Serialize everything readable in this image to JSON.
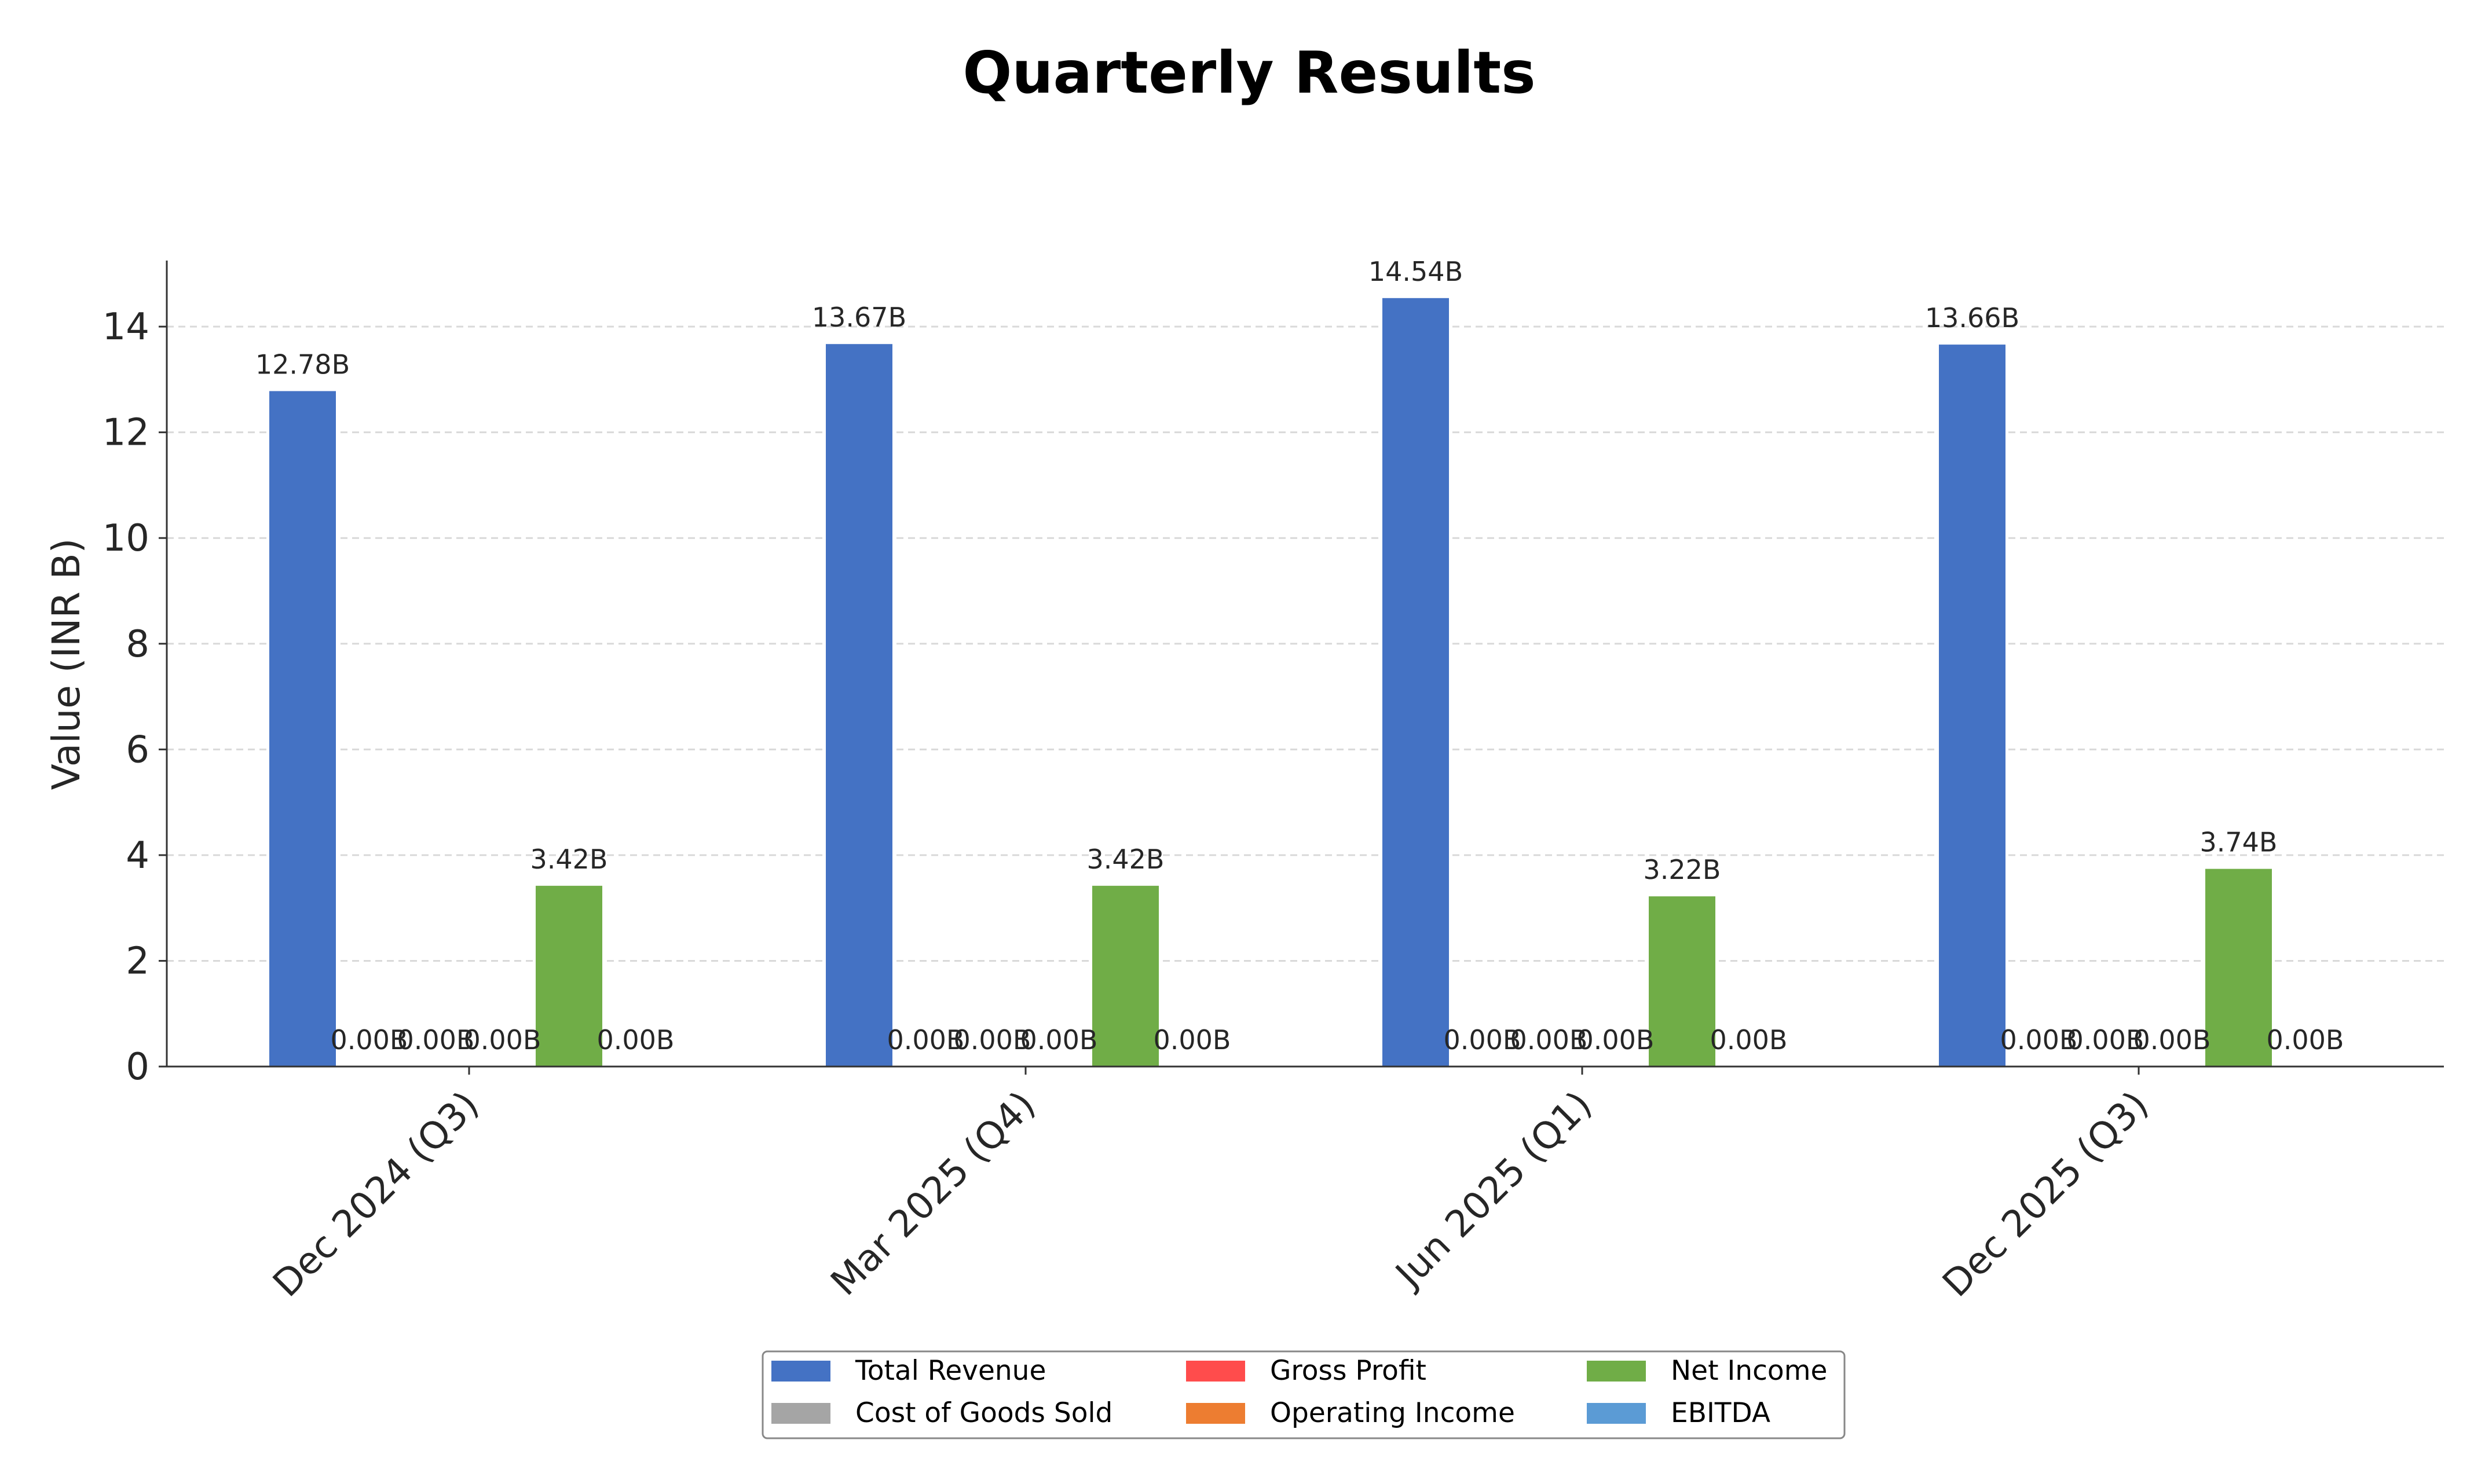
{
  "chart_data": {
    "type": "bar",
    "title": "Quarterly Results",
    "xlabel": "",
    "ylabel": "Value (INR B)",
    "ylim": [
      0,
      15.25
    ],
    "yticks": [
      0,
      2,
      4,
      6,
      8,
      10,
      12,
      14
    ],
    "grid": "y-dashed",
    "legend_placement": "bottom-center",
    "legend_columns": 3,
    "categories": [
      "Dec 2024 (Q3)",
      "Mar 2025 (Q4)",
      "Jun 2025 (Q1)",
      "Dec 2025 (Q3)"
    ],
    "series": [
      {
        "name": "Total Revenue",
        "color": "#4472C4",
        "values": [
          12.78,
          13.67,
          14.54,
          13.66
        ],
        "labels": [
          "12.78B",
          "13.67B",
          "14.54B",
          "13.66B"
        ]
      },
      {
        "name": "Cost of Goods Sold",
        "color": "#A5A5A5",
        "values": [
          0,
          0,
          0,
          0
        ],
        "labels": [
          "0.00B",
          "0.00B",
          "0.00B",
          "0.00B"
        ]
      },
      {
        "name": "Gross Profit",
        "color": "#FF4C4C",
        "values": [
          0,
          0,
          0,
          0
        ],
        "labels": [
          "0.00B",
          "0.00B",
          "0.00B",
          "0.00B"
        ]
      },
      {
        "name": "Operating Income",
        "color": "#ED7D31",
        "values": [
          0,
          0,
          0,
          0
        ],
        "labels": [
          "0.00B",
          "0.00B",
          "0.00B",
          "0.00B"
        ]
      },
      {
        "name": "Net Income",
        "color": "#70AD47",
        "values": [
          3.42,
          3.42,
          3.22,
          3.74
        ],
        "labels": [
          "3.42B",
          "3.42B",
          "3.22B",
          "3.74B"
        ]
      },
      {
        "name": "EBITDA",
        "color": "#5B9BD5",
        "values": [
          0,
          0,
          0,
          0
        ],
        "labels": [
          "0.00B",
          "0.00B",
          "0.00B",
          "0.00B"
        ]
      }
    ]
  }
}
